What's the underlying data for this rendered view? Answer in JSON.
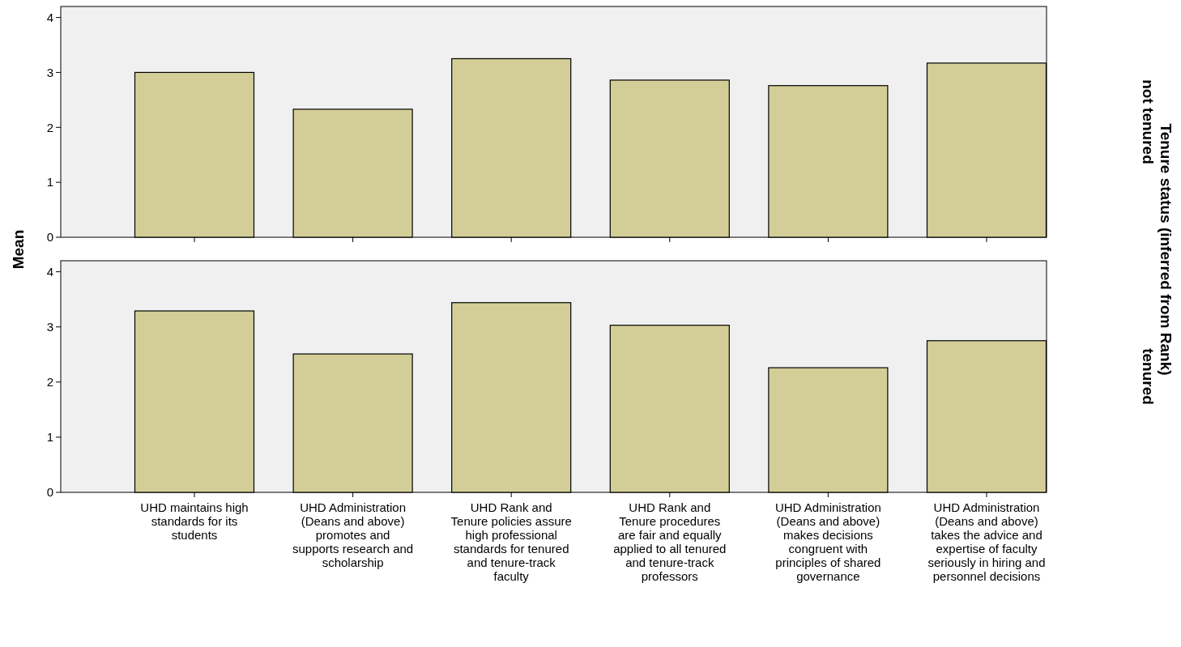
{
  "chart_data": [
    {
      "type": "bar",
      "ylabel": "Mean",
      "y2label": "not tenured",
      "annotations": [
        "Tenure status (inferred from Rank)"
      ],
      "categories": [
        null,
        null,
        null,
        null,
        null,
        null
      ],
      "values": [
        3.0,
        2.33,
        3.25,
        2.86,
        2.76,
        3.17
      ],
      "color": "#d3ce97",
      "ylim": [
        0,
        4.2
      ],
      "yticks": [
        0,
        1,
        2,
        3,
        4
      ],
      "tick_labels": "y",
      "grid": false
    },
    {
      "type": "bar",
      "y2label": "tenured",
      "categories": [
        "UHD maintains high standards for its students",
        "UHD Administration (Deans and above) promotes and supports research and scholarship",
        "UHD Rank and Tenure policies assure high professional standards for tenured and tenure-track faculty",
        "UHD Rank and Tenure procedures are fair and equally applied to all tenured and tenure-track professors",
        "UHD Administration (Deans and above) makes decisions congruent with principles of shared governance",
        "UHD Administration (Deans and above) takes the advice and expertise of faculty seriously in hiring and personnel decisions"
      ],
      "values": [
        3.29,
        2.51,
        3.44,
        3.03,
        2.26,
        2.75
      ],
      "color": "#d3ce97",
      "ylim": [
        0,
        4.2
      ],
      "yticks": [
        0,
        1,
        2,
        3,
        4
      ],
      "grid": false
    }
  ]
}
